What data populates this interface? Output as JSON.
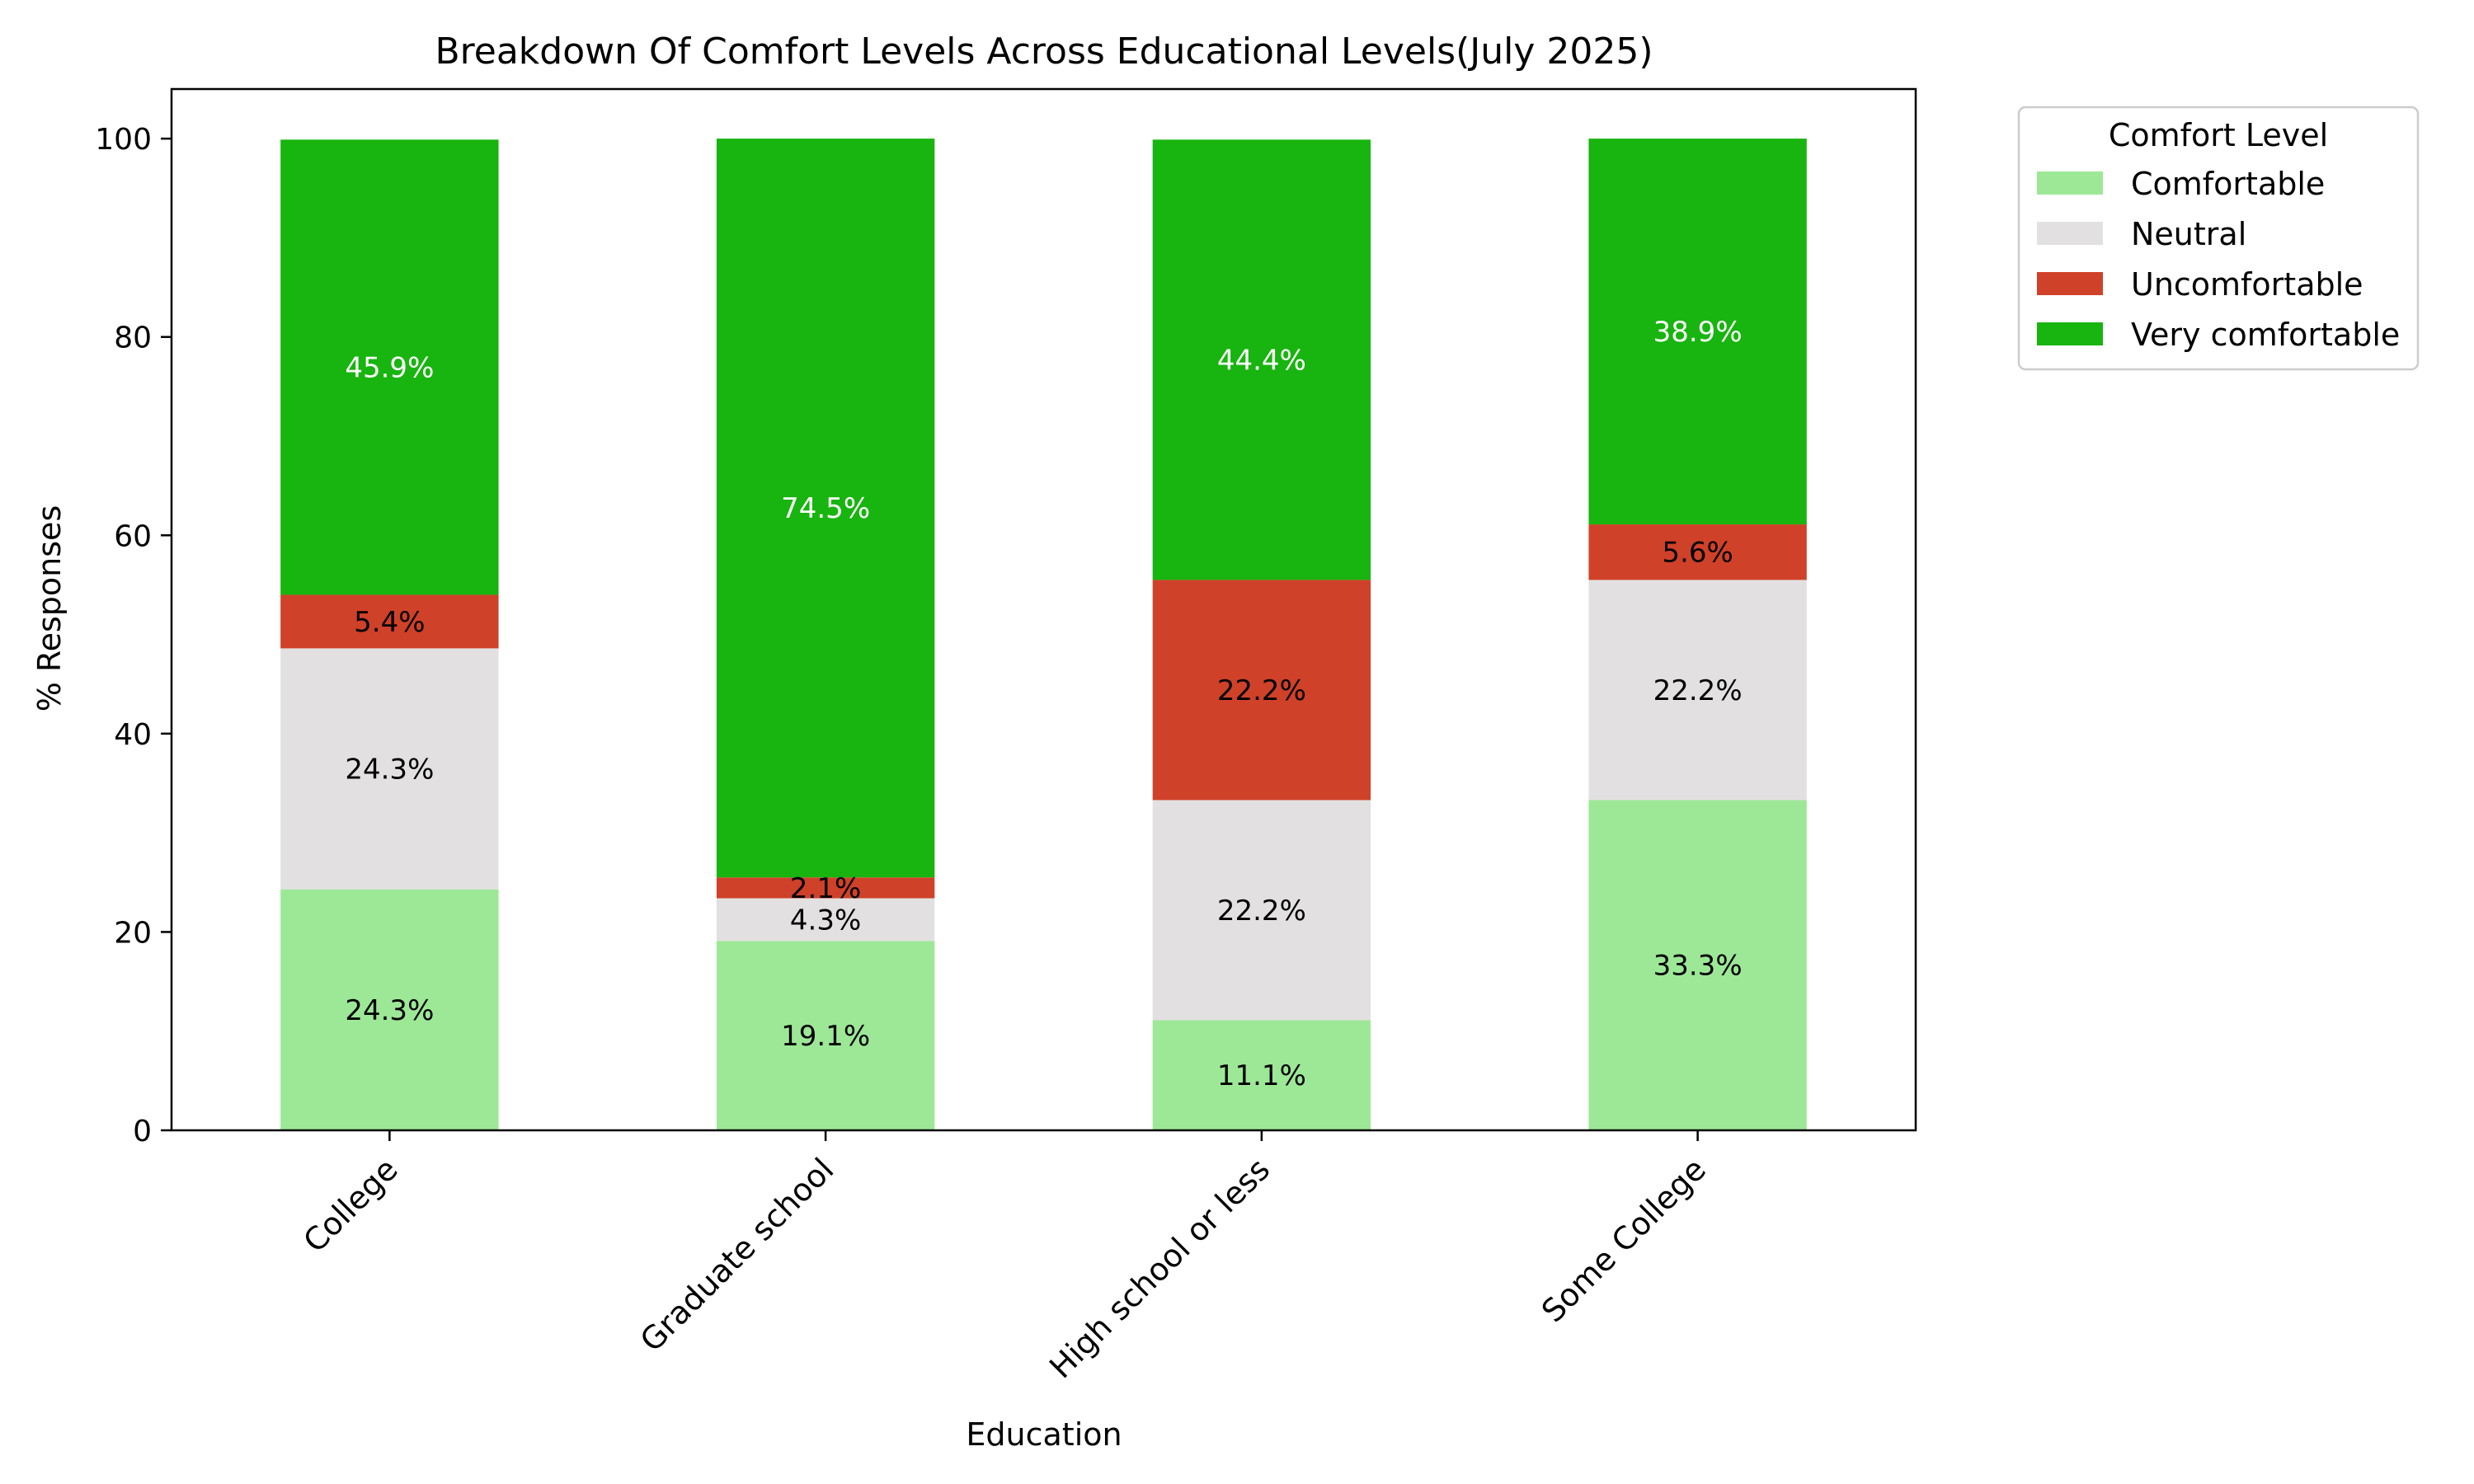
{
  "chart_data": {
    "type": "bar",
    "stacked": true,
    "title": "Breakdown Of Comfort Levels Across Educational Levels(July 2025)",
    "xlabel": "Education",
    "ylabel": "% Responses",
    "ylim": [
      0,
      105
    ],
    "yticks": [
      0,
      20,
      40,
      60,
      80,
      100
    ],
    "grid": false,
    "legend_title": "Comfort Level",
    "legend_position": "outside-top-right",
    "categories": [
      "College",
      "Graduate school",
      "High school or less",
      "Some College"
    ],
    "series": [
      {
        "name": "Comfortable",
        "color": "#9de897",
        "label_color": "#000000",
        "values": [
          24.3,
          19.1,
          11.1,
          33.3
        ],
        "labels": [
          "24.3%",
          "19.1%",
          "11.1%",
          "33.3%"
        ]
      },
      {
        "name": "Neutral",
        "color": "#e2e0e0",
        "label_color": "#000000",
        "values": [
          24.3,
          4.3,
          22.2,
          22.2
        ],
        "labels": [
          "24.3%",
          "4.3%",
          "22.2%",
          "22.2%"
        ]
      },
      {
        "name": "Uncomfortable",
        "color": "#cf4128",
        "label_color": "#000000",
        "values": [
          5.4,
          2.1,
          22.2,
          5.6
        ],
        "labels": [
          "5.4%",
          "2.1%",
          "22.2%",
          "5.6%"
        ]
      },
      {
        "name": "Very comfortable",
        "color": "#18b40f",
        "label_color": "#ffffff",
        "values": [
          45.9,
          74.5,
          44.4,
          38.9
        ],
        "labels": [
          "45.9%",
          "74.5%",
          "44.4%",
          "38.9%"
        ]
      }
    ]
  }
}
